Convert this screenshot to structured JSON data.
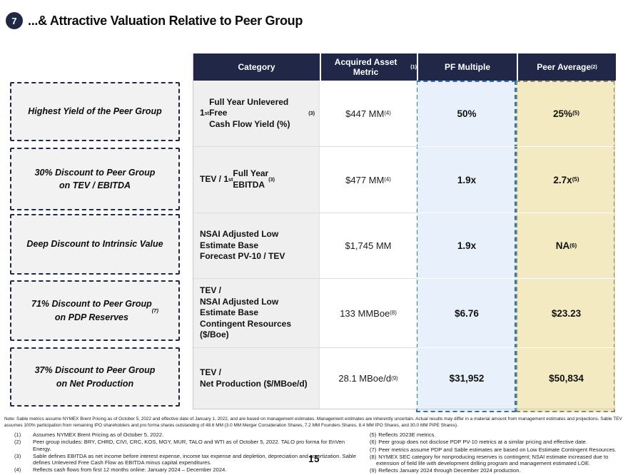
{
  "colors": {
    "navy": "#212747",
    "blue-fill": "#e8f1fb",
    "blue-border": "#1778cc",
    "tan-fill": "#f4eac2",
    "tan-border": "#8f8a62",
    "category-fill": "#efefef",
    "callout-fill": "#f2f2f2"
  },
  "slide": {
    "badge": "7",
    "title": "...& Attractive Valuation Relative to Peer Group",
    "page_number": "15"
  },
  "callouts": [
    "Highest Yield of the Peer Group",
    "30% Discount to Peer Group\non TEV / EBITDA",
    "Deep Discount to Intrinsic Value",
    "71% Discount to Peer Group\non PDP Reserves ^{(7)}",
    "37% Discount to Peer Group\non Net Production"
  ],
  "table": {
    "headers": {
      "category": "Category",
      "metric": "Acquired Asset Metric ^{(1)}",
      "pf": "PF Multiple",
      "peer": "Peer Average ^{(2)}"
    },
    "rows": [
      {
        "category": "1^{st} Full Year Unlevered Free\nCash Flow Yield (%) ^{(3)}",
        "metric": "$447 MM ^{(4)}",
        "pf": "50%",
        "peer": "25% ^{(5)}"
      },
      {
        "category": "TEV / 1^{st} Full Year\nEBITDA ^{(3)}",
        "metric": "$477 MM ^{(4)}",
        "pf": "1.9x",
        "peer": "2.7x ^{(5)}"
      },
      {
        "category": "NSAI Adjusted Low\nEstimate Base\nForecast PV-10 / TEV",
        "metric": "$1,745 MM",
        "pf": "1.9x",
        "peer": "NA ^{(6)}"
      },
      {
        "category": "TEV /\nNSAI Adjusted Low\nEstimate Base\nContingent Resources\n($/Boe)",
        "metric": "133 MMBoe ^{(8)}",
        "pf": "$6.76",
        "peer": "$23.23"
      },
      {
        "category": "TEV /\nNet Production ($/MBoe/d)",
        "metric": "28.1 MBoe/d ^{(9)}",
        "pf": "$31,952",
        "peer": "$50,834"
      }
    ]
  },
  "footnotes": {
    "note": "Note: Sable metrics assume NYMEX Brent Pricing as of October 5, 2022 and effective date of January 1, 2022, and are based on management estimates. Management estimates are inherently uncertain. Actual results may differ in a material amount from management estimates and projections. Sable TEV assumes 100% participation from remaining IPO shareholders and pro forma shares outstanding of 48.6 MM (3.0 MM Merger Consideration Shares, 7.2 MM Founders Shares, 8.4 MM IPO Shares, and 30.0 MM PIPE Shares).",
    "left": [
      {
        "num": "(1)",
        "text": "Assumes NYMEX Brent Pricing as of October 5, 2022."
      },
      {
        "num": "(2)",
        "text": "Peer group includes: BRY, CHRD, CIVI, CRC, KOS, MGY, MUR, TALO and WTI as of October 5, 2022. TALO pro forma for EnVen Energy."
      },
      {
        "num": "(3)",
        "text": "Sable defines EBITDA as net income before interest expense, income tax expense and depletion, depreciation and amortization. Sable defines Unlevered Free Cash Flow as EBITDA minus capital expenditures."
      },
      {
        "num": "(4)",
        "text": "Reflects cash flows from first 12 months online: January 2024 – December 2024."
      }
    ],
    "right": [
      {
        "num": "(5)",
        "text": "Reflects 2023E metrics."
      },
      {
        "num": "(6)",
        "text": "Peer group does not disclose PDP PV-10 metrics at a similar pricing and effective date."
      },
      {
        "num": "(7)",
        "text": "Peer metrics assume PDP and Sable estimates are based on Low Estimate Contingent Resources."
      },
      {
        "num": "(8)",
        "text": "NYMEX SEC category for nonproducing reserves is contingent; NSAI estimate increased due to extension of field life with development drilling program and management estimated LOE."
      },
      {
        "num": "(9)",
        "text": "Reflects January 2024 through December 2024 production."
      }
    ]
  }
}
